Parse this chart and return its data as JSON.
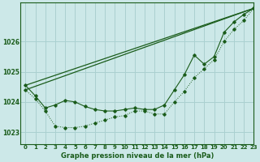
{
  "title": "Graphe pression niveau de la mer (hPa)",
  "background_color": "#cce8e8",
  "grid_color": "#aad0d0",
  "line_color": "#1a5c1a",
  "xlim": [
    -0.5,
    23
  ],
  "ylim": [
    1022.6,
    1027.3
  ],
  "yticks": [
    1023,
    1024,
    1025,
    1026
  ],
  "xtick_labels": [
    "0",
    "1",
    "2",
    "3",
    "4",
    "5",
    "6",
    "7",
    "8",
    "9",
    "10",
    "11",
    "12",
    "13",
    "14",
    "15",
    "16",
    "17",
    "18",
    "19",
    "20",
    "21",
    "22",
    "23"
  ],
  "series_dot_x": [
    0,
    1,
    2,
    3,
    4,
    5,
    6,
    7,
    8,
    9,
    10,
    11,
    12,
    13,
    14,
    15,
    16,
    17,
    18,
    19,
    20,
    21,
    22,
    23
  ],
  "series_dot_y": [
    1024.4,
    1024.1,
    1023.7,
    1023.2,
    1023.15,
    1023.15,
    1023.2,
    1023.3,
    1023.4,
    1023.5,
    1023.55,
    1023.7,
    1023.7,
    1023.6,
    1023.6,
    1024.0,
    1024.35,
    1024.8,
    1025.1,
    1025.4,
    1026.0,
    1026.4,
    1026.7,
    1027.1
  ],
  "series_solid_x": [
    0,
    1,
    2,
    3,
    4,
    5,
    6,
    7,
    8,
    9,
    10,
    11,
    12,
    13,
    14,
    15,
    16,
    17,
    18,
    19,
    20,
    21,
    22,
    23
  ],
  "series_solid_y": [
    1024.55,
    1024.2,
    1023.8,
    1023.9,
    1024.05,
    1024.0,
    1023.85,
    1023.75,
    1023.7,
    1023.7,
    1023.75,
    1023.8,
    1023.75,
    1023.75,
    1023.9,
    1024.4,
    1024.9,
    1025.55,
    1025.25,
    1025.5,
    1026.3,
    1026.65,
    1026.9,
    1027.1
  ],
  "line1_x": [
    0,
    23
  ],
  "line1_y": [
    1024.55,
    1027.1
  ],
  "line2_x": [
    0,
    23
  ],
  "line2_y": [
    1024.4,
    1027.1
  ]
}
